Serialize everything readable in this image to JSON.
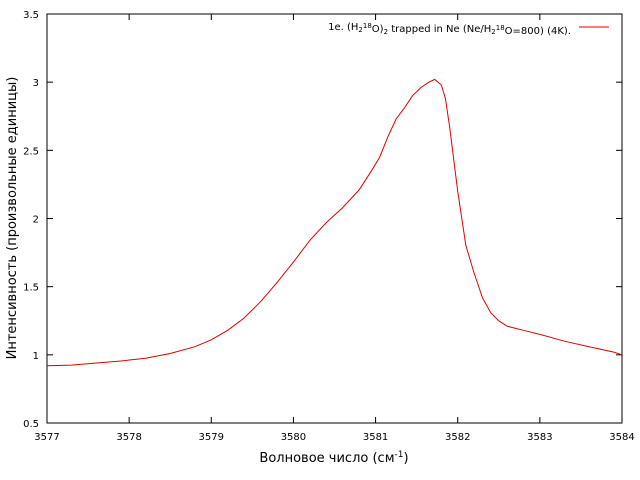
{
  "chart_data": {
    "type": "line",
    "xlabel": "Волновое число (см",
    "xlabel_sup": "-1",
    "xlabel_end": ")",
    "ylabel": "Интенсивность (произвольные единицы)",
    "xlim": [
      3577,
      3584
    ],
    "ylim": [
      0.5,
      3.5
    ],
    "x_ticks": [
      "3577",
      "3578",
      "3579",
      "3580",
      "3581",
      "3582",
      "3583",
      "3584"
    ],
    "y_ticks": [
      "0.5",
      "1",
      "1.5",
      "2",
      "2.5",
      "3",
      "3.5"
    ],
    "grid": false,
    "legend_position": "top-right",
    "legend": {
      "p1": "1e. (H",
      "s1": "2",
      "p2": "",
      "s2": "18",
      "p3": "O)",
      "s3": "2",
      "p4": " trapped in Ne (Ne/H",
      "s4": "2",
      "p5": "",
      "s5": "18",
      "p6": "O=800) (4K)."
    },
    "series": [
      {
        "color": "#e00000",
        "x": [
          3577.0,
          3577.3,
          3577.6,
          3577.9,
          3578.2,
          3578.5,
          3578.8,
          3579.0,
          3579.2,
          3579.4,
          3579.6,
          3579.8,
          3580.0,
          3580.2,
          3580.4,
          3580.6,
          3580.8,
          3580.95,
          3581.05,
          3581.15,
          3581.25,
          3581.35,
          3581.45,
          3581.55,
          3581.65,
          3581.72,
          3581.8,
          3581.85,
          3581.9,
          3582.0,
          3582.1,
          3582.2,
          3582.3,
          3582.4,
          3582.5,
          3582.6,
          3582.8,
          3583.0,
          3583.3,
          3583.6,
          3583.9,
          3584.0
        ],
        "y": [
          0.92,
          0.925,
          0.94,
          0.955,
          0.975,
          1.01,
          1.06,
          1.11,
          1.18,
          1.27,
          1.39,
          1.53,
          1.68,
          1.84,
          1.97,
          2.08,
          2.21,
          2.35,
          2.45,
          2.6,
          2.73,
          2.81,
          2.9,
          2.96,
          3.0,
          3.02,
          2.98,
          2.88,
          2.68,
          2.2,
          1.8,
          1.6,
          1.42,
          1.31,
          1.25,
          1.21,
          1.18,
          1.15,
          1.1,
          1.06,
          1.02,
          1.0
        ]
      }
    ]
  }
}
